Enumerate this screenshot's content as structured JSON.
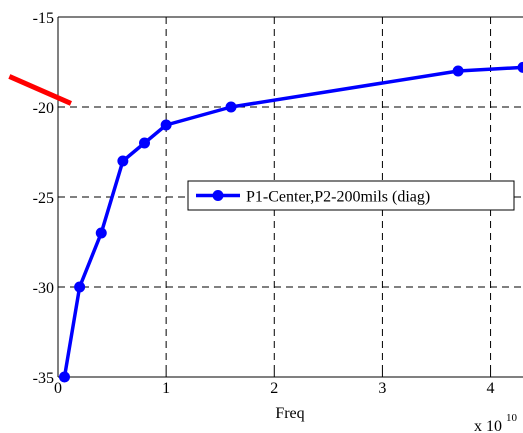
{
  "chart_data": {
    "type": "line",
    "title": "",
    "xlabel": "Freq",
    "ylabel": "",
    "x_exponent_label": "x 10",
    "x_exponent_power": "10",
    "xlim": [
      0,
      4.3
    ],
    "ylim": [
      -35,
      -15
    ],
    "x_ticks": [
      0,
      1,
      2,
      3,
      4
    ],
    "y_ticks": [
      -35,
      -30,
      -25,
      -20,
      -15
    ],
    "x_tick_labels": [
      "0",
      "1",
      "2",
      "3",
      "4"
    ],
    "y_tick_labels": [
      "-35",
      "-30",
      "-25",
      "-20",
      "-15"
    ],
    "grid": true,
    "legend_position": "center-right",
    "series": [
      {
        "name": "P1-Center,P2-200mils (diag)",
        "color": "#0000ff",
        "marker": "circle",
        "x": [
          0.06,
          0.2,
          0.4,
          0.6,
          0.8,
          1.0,
          1.6,
          3.7,
          4.3
        ],
        "y": [
          -35,
          -30,
          -27,
          -23,
          -22,
          -21,
          -20,
          -18,
          -17.8
        ]
      },
      {
        "name": "",
        "color": "#ff0000",
        "marker": "none",
        "x": [
          -0.45,
          0.12
        ],
        "y": [
          -18.3,
          -19.8
        ]
      }
    ]
  }
}
